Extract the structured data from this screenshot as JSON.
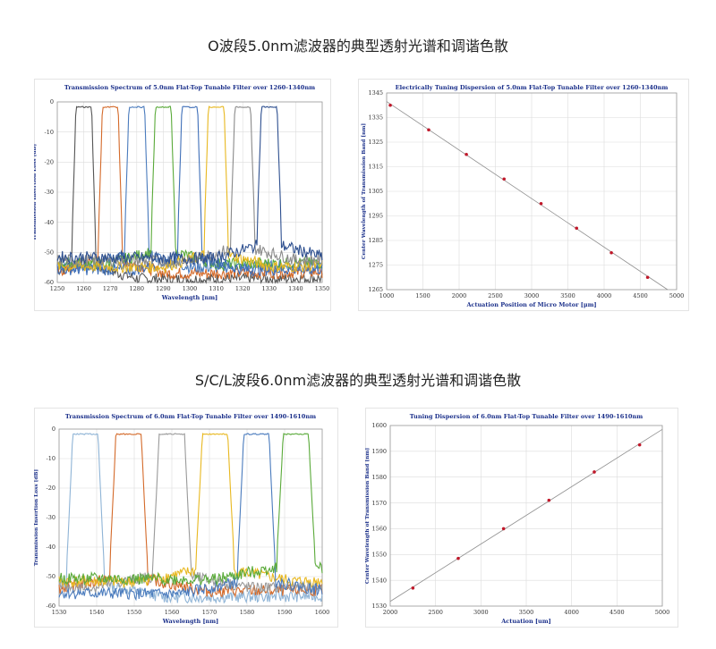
{
  "sections": [
    {
      "title": "O波段5.0nm滤波器的典型透射光谱和调谐色散"
    },
    {
      "title": "S/C/L波段6.0nm滤波器的典型透射光谱和调谐色散"
    }
  ],
  "chart_data": [
    {
      "type": "line",
      "title": "Transmission Spectrum of 5.0nm Flat-Top Tunable Filter over 1260-1340nm",
      "xlabel": "Wavelength [nm]",
      "ylabel": "Transmission Insertion Loss [dB]",
      "xlim": [
        1250,
        1350
      ],
      "ylim": [
        -60,
        0
      ],
      "xticks": [
        1250,
        1260,
        1270,
        1280,
        1290,
        1300,
        1310,
        1320,
        1330,
        1340,
        1350
      ],
      "yticks": [
        0,
        -10,
        -20,
        -30,
        -40,
        -50,
        -60
      ],
      "grid": true,
      "series": [
        {
          "center": 1260,
          "color": "#555555",
          "floor": -54
        },
        {
          "center": 1270,
          "color": "#d46a2a",
          "floor": -52
        },
        {
          "center": 1280,
          "color": "#4a7bbd",
          "floor": -50
        },
        {
          "center": 1290,
          "color": "#5aaa3a",
          "floor": -49
        },
        {
          "center": 1300,
          "color": "#3f6fb8",
          "floor": -51
        },
        {
          "center": 1310,
          "color": "#e8b820",
          "floor": -50
        },
        {
          "center": 1320,
          "color": "#8a8a8a",
          "floor": -48
        },
        {
          "center": 1330,
          "color": "#2d4f8f",
          "floor": -47
        }
      ]
    },
    {
      "type": "scatter",
      "title": "Electrically Tuning Dispersion of 5.0nm Flat-Top Tunable Filter over 1260-1340nm",
      "xlabel": "Actuation Position of Micro Motor [μm]",
      "ylabel": "Center Wavelength of Transmission Band [nm]",
      "xlim": [
        1000,
        5000
      ],
      "ylim": [
        1265,
        1345
      ],
      "xticks": [
        1000,
        1500,
        2000,
        2500,
        3000,
        3500,
        4000,
        4500,
        5000
      ],
      "yticks": [
        1265,
        1275,
        1285,
        1295,
        1305,
        1315,
        1325,
        1335,
        1345
      ],
      "grid": true,
      "x": [
        1050,
        1580,
        2100,
        2620,
        3130,
        3620,
        4100,
        4600
      ],
      "y": [
        1340,
        1330,
        1320,
        1310,
        1300,
        1290,
        1280,
        1270
      ]
    },
    {
      "type": "line",
      "title": "Transmission Spectrum of 6.0nm Flat-Top Tunable Filter over 1490-1610nm",
      "xlabel": "Wavelength [nm]",
      "ylabel": "Transmission Insertion Loss [dB]",
      "xlim": [
        1530,
        1600
      ],
      "ylim": [
        -60,
        0
      ],
      "xticks": [
        1530,
        1540,
        1550,
        1560,
        1570,
        1580,
        1590,
        1600
      ],
      "yticks": [
        0,
        -10,
        -20,
        -30,
        -40,
        -50,
        -60
      ],
      "grid": true,
      "series": [
        {
          "center": 1537,
          "color": "#8fb4d6",
          "floor": -52
        },
        {
          "center": 1548.5,
          "color": "#d46a2a",
          "floor": -50
        },
        {
          "center": 1560,
          "color": "#9a9a9a",
          "floor": -49
        },
        {
          "center": 1571.5,
          "color": "#e8b820",
          "floor": -47
        },
        {
          "center": 1582.5,
          "color": "#4a7bbd",
          "floor": -51
        },
        {
          "center": 1593,
          "color": "#5aaa3a",
          "floor": -46
        }
      ]
    },
    {
      "type": "scatter",
      "title": "Tuning Dispersion of 6.0nm Flat-Top Tunable Filter over 1490-1610nm",
      "xlabel": "Actuation [um]",
      "ylabel": "Center Wavelength of Transmission Band [nm]",
      "xlim": [
        2000,
        5000
      ],
      "ylim": [
        1530,
        1600
      ],
      "xticks": [
        2000,
        2500,
        3000,
        3500,
        4000,
        4500,
        5000
      ],
      "yticks": [
        1530,
        1540,
        1550,
        1560,
        1570,
        1580,
        1590,
        1600
      ],
      "grid": true,
      "x": [
        2250,
        2750,
        3250,
        3750,
        4250,
        4750
      ],
      "y": [
        1537,
        1548.5,
        1560,
        1571,
        1582,
        1592.5
      ]
    }
  ],
  "colors": {
    "marker": "#c0182a",
    "fit_line": "#909090",
    "title": "#1a2f8a",
    "grid": "#dcdcdc"
  }
}
